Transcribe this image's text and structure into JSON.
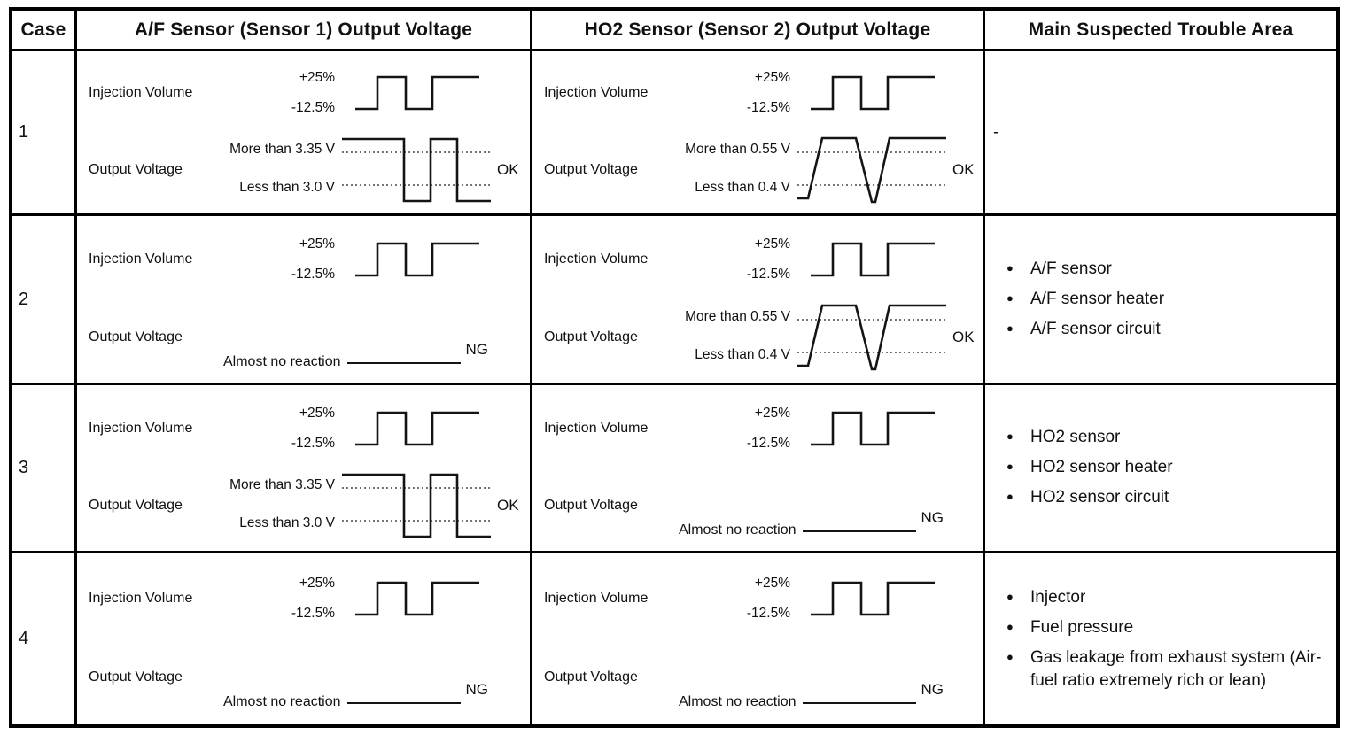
{
  "header": {
    "case": "Case",
    "af": "A/F Sensor (Sensor 1) Output Voltage",
    "ho2": "HO2 Sensor (Sensor 2) Output Voltage",
    "trouble": "Main Suspected Trouble Area"
  },
  "rows": [
    {
      "case": "1",
      "af": {
        "injection_label": "Injection Volume",
        "inj_high": "+25%",
        "inj_low": "-12.5%",
        "output_label": "Output Voltage",
        "more": "More than 3.35 V",
        "less": "Less than 3.0 V",
        "verdict": "OK",
        "wave": "af-ok"
      },
      "ho2": {
        "injection_label": "Injection Volume",
        "inj_high": "+25%",
        "inj_low": "-12.5%",
        "output_label": "Output Voltage",
        "more": "More than 0.55 V",
        "less": "Less than 0.4 V",
        "verdict": "OK",
        "wave": "ho2-ok"
      },
      "trouble": {
        "dash": "-",
        "items": []
      }
    },
    {
      "case": "2",
      "af": {
        "injection_label": "Injection Volume",
        "inj_high": "+25%",
        "inj_low": "-12.5%",
        "output_label": "Output Voltage",
        "no_reaction": "Almost no reaction",
        "verdict": "NG"
      },
      "ho2": {
        "injection_label": "Injection Volume",
        "inj_high": "+25%",
        "inj_low": "-12.5%",
        "output_label": "Output Voltage",
        "more": "More than 0.55 V",
        "less": "Less than 0.4 V",
        "verdict": "OK",
        "wave": "ho2-ok"
      },
      "trouble": {
        "items": [
          "A/F sensor",
          "A/F sensor heater",
          "A/F sensor circuit"
        ]
      }
    },
    {
      "case": "3",
      "af": {
        "injection_label": "Injection Volume",
        "inj_high": "+25%",
        "inj_low": "-12.5%",
        "output_label": "Output Voltage",
        "more": "More than 3.35 V",
        "less": "Less than 3.0 V",
        "verdict": "OK",
        "wave": "af-ok"
      },
      "ho2": {
        "injection_label": "Injection Volume",
        "inj_high": "+25%",
        "inj_low": "-12.5%",
        "output_label": "Output Voltage",
        "no_reaction": "Almost no reaction",
        "verdict": "NG"
      },
      "trouble": {
        "items": [
          "HO2 sensor",
          "HO2 sensor heater",
          "HO2 sensor circuit"
        ]
      }
    },
    {
      "case": "4",
      "af": {
        "injection_label": "Injection Volume",
        "inj_high": "+25%",
        "inj_low": "-12.5%",
        "output_label": "Output Voltage",
        "no_reaction": "Almost no reaction",
        "verdict": "NG"
      },
      "ho2": {
        "injection_label": "Injection Volume",
        "inj_high": "+25%",
        "inj_low": "-12.5%",
        "output_label": "Output Voltage",
        "no_reaction": "Almost no reaction",
        "verdict": "NG"
      },
      "trouble": {
        "items": [
          "Injector",
          "Fuel pressure",
          "Gas leakage from exhaust system (Air-fuel ratio extremely rich or lean)"
        ]
      }
    }
  ]
}
